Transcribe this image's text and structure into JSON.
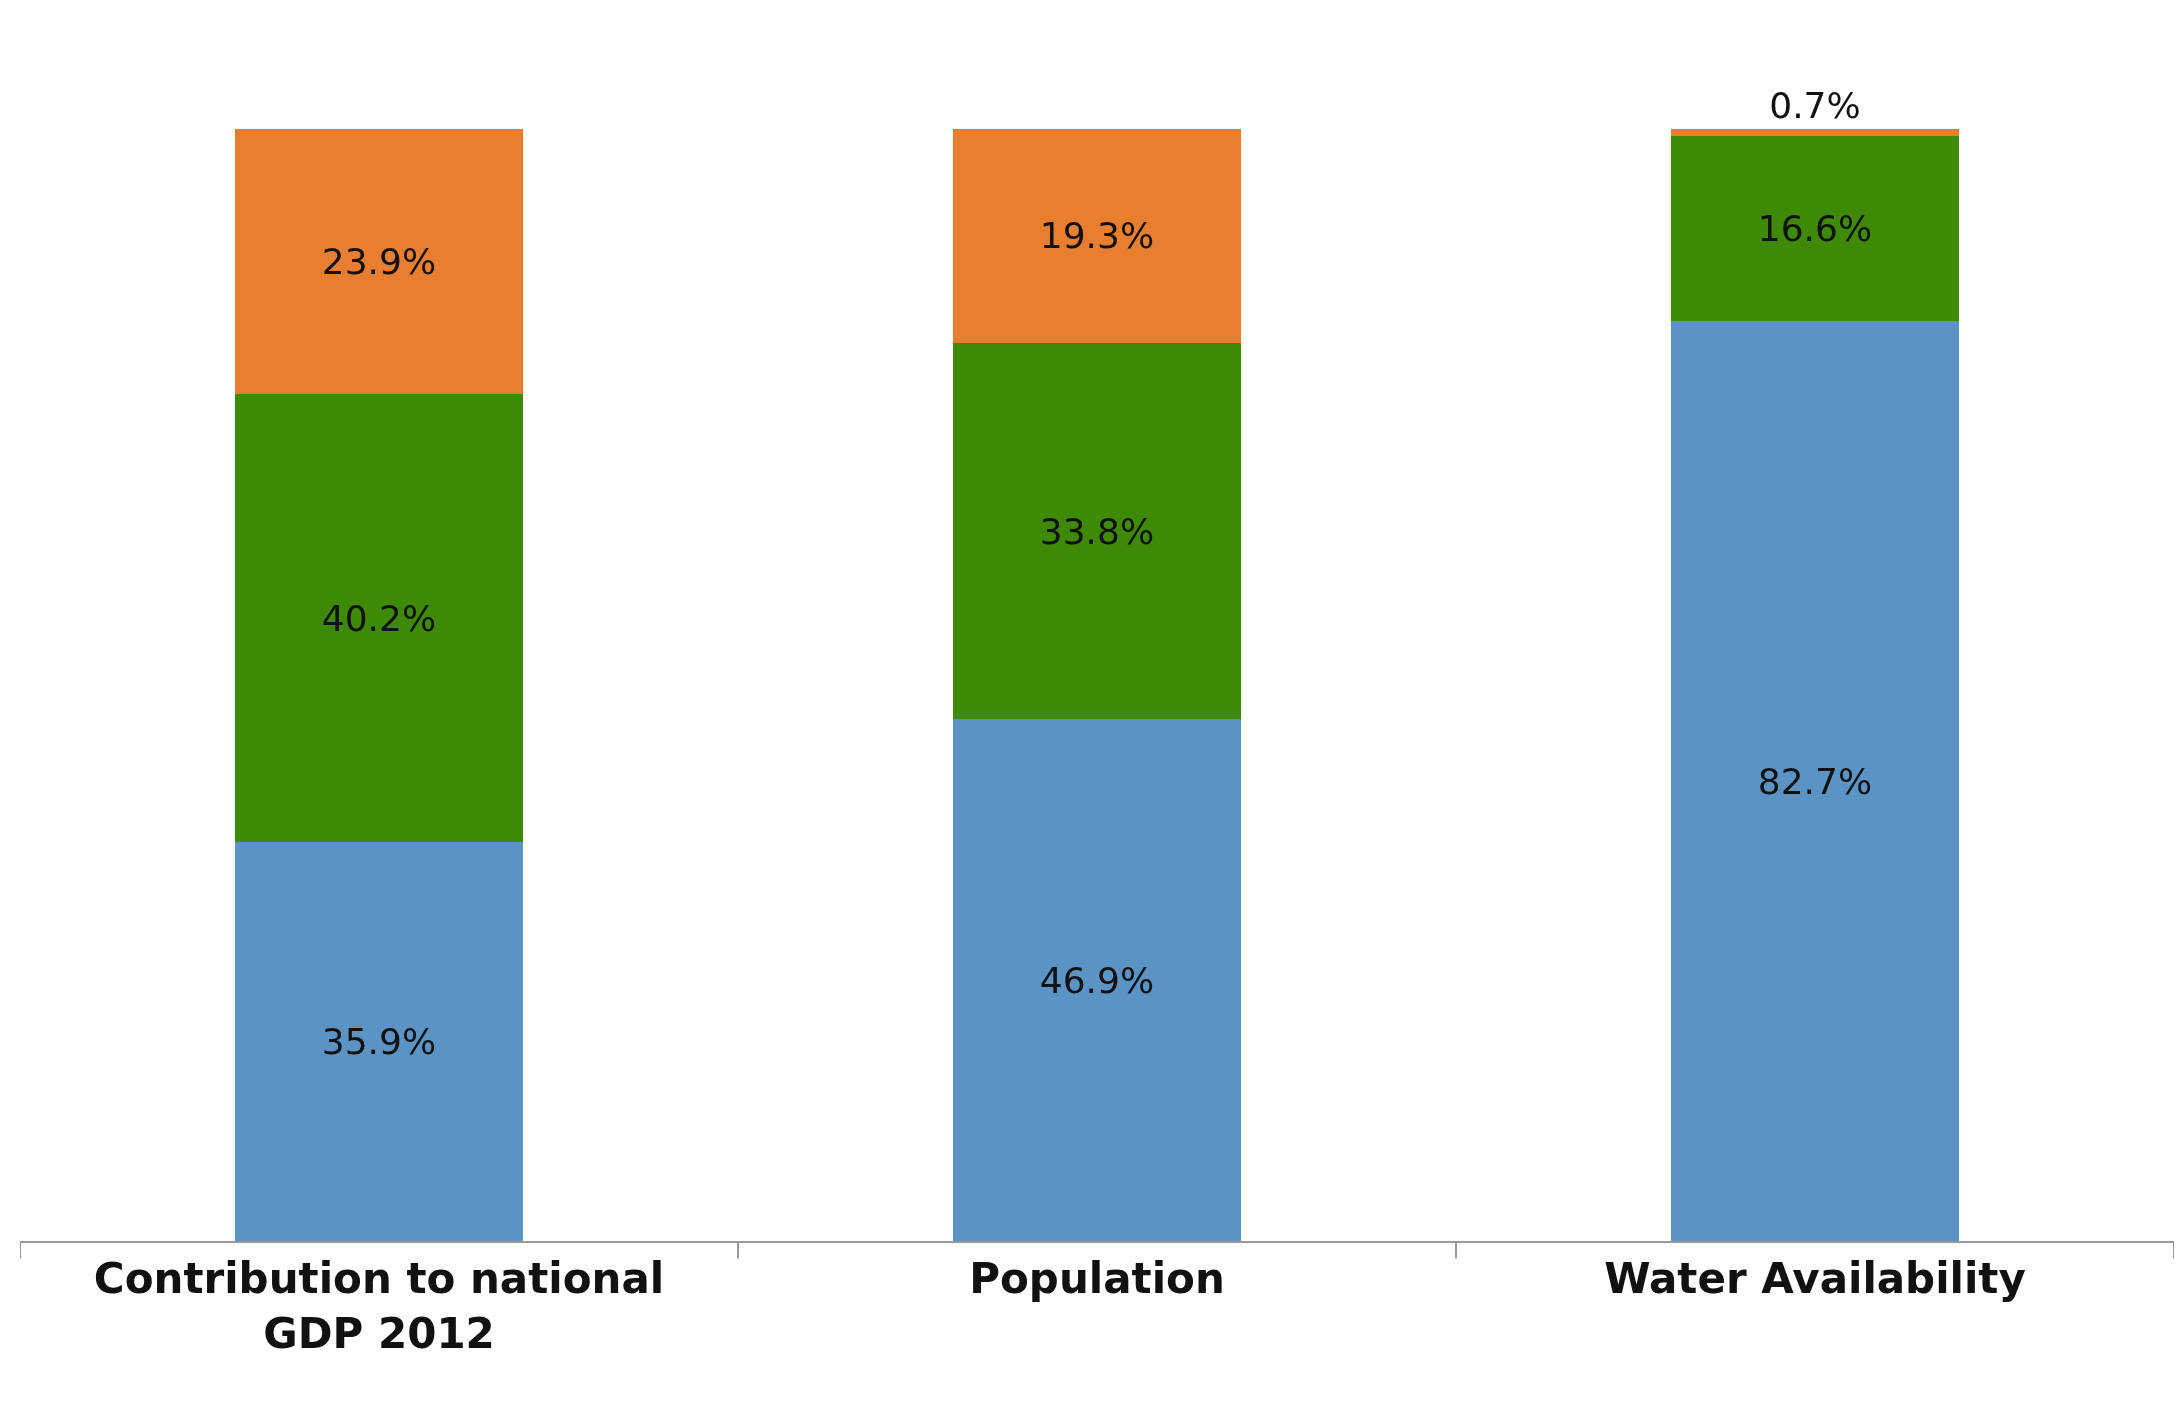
{
  "chart_data": {
    "type": "bar",
    "stacked": true,
    "categories": [
      "Contribution to national GDP 2012",
      "Population",
      "Water Availability"
    ],
    "series": [
      {
        "color": "#5b93c5",
        "values": [
          35.9,
          46.9,
          82.7
        ],
        "value_labels": [
          "35.9%",
          "46.9%",
          "82.7%"
        ]
      },
      {
        "color": "#3f8a04",
        "values": [
          40.2,
          33.8,
          16.6
        ],
        "value_labels": [
          "40.2%",
          "33.8%",
          "16.6%"
        ]
      },
      {
        "color": "#e87e2f",
        "values": [
          23.9,
          19.3,
          0.7
        ],
        "value_labels": [
          "23.9%",
          "19.3%",
          "0.7%"
        ]
      }
    ],
    "tick_labels": "x"
  }
}
